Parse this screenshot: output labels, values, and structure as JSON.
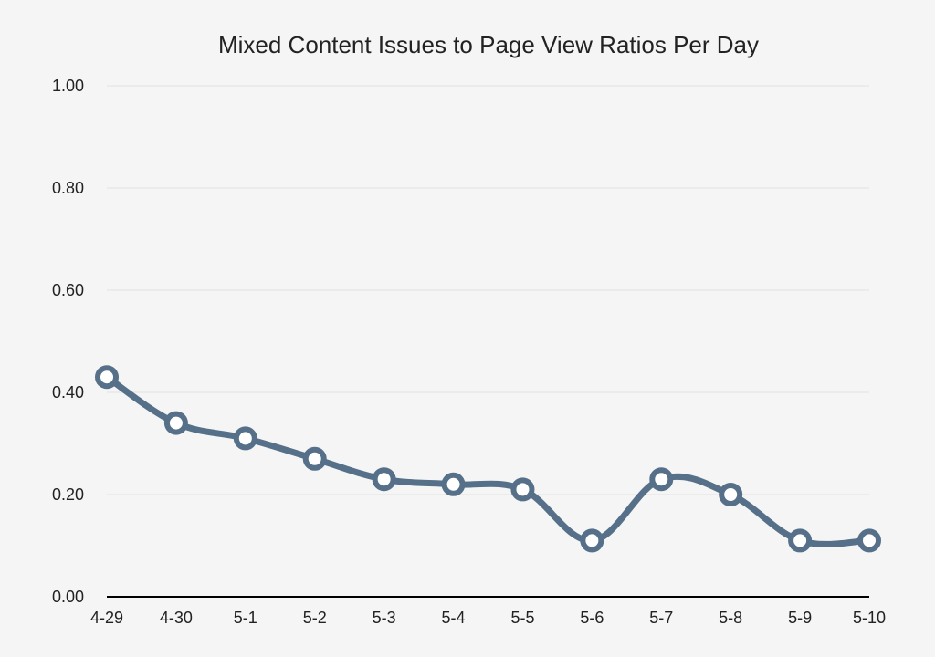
{
  "chart_data": {
    "type": "line",
    "title": "Mixed Content Issues to Page View Ratios Per Day",
    "xlabel": "",
    "ylabel": "",
    "categories": [
      "4-29",
      "4-30",
      "5-1",
      "5-2",
      "5-3",
      "5-4",
      "5-5",
      "5-6",
      "5-7",
      "5-8",
      "5-9",
      "5-10"
    ],
    "series": [
      {
        "values": [
          0.43,
          0.34,
          0.31,
          0.27,
          0.23,
          0.22,
          0.21,
          0.11,
          0.23,
          0.2,
          0.11,
          0.11
        ]
      }
    ],
    "ylim": [
      0,
      1.0
    ],
    "yticks": [
      "0.00",
      "0.20",
      "0.40",
      "0.60",
      "0.80",
      "1.00"
    ],
    "grid": true,
    "legend": "none",
    "colors": {
      "line": "#557088",
      "marker_fill": "#ffffff",
      "grid": "#e1e1e1",
      "axis": "#000000",
      "background": "#f5f5f5"
    }
  }
}
